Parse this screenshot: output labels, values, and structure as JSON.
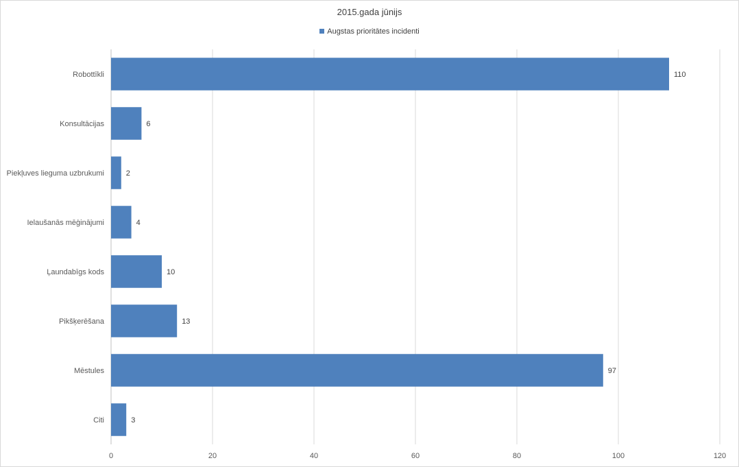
{
  "chart_data": {
    "type": "bar",
    "orientation": "horizontal",
    "title": "2015.gada jūnijs",
    "categories": [
      "Robottīkli",
      "Konsultācijas",
      "Piekļuves lieguma uzbrukumi",
      "Ielaušanās mēģinājumi",
      "Ļaundabīgs kods",
      "Pikšķerēšana",
      "Mēstules",
      "Citi"
    ],
    "series": [
      {
        "name": "Augstas prioritātes incidenti",
        "values": [
          110,
          6,
          2,
          4,
          10,
          13,
          97,
          3
        ],
        "color": "#4f81bd"
      }
    ],
    "xlim": [
      0,
      120
    ],
    "xticks": [
      0,
      20,
      40,
      60,
      80,
      100,
      120
    ],
    "grid": true,
    "legend_position": "top",
    "data_labels": true
  }
}
